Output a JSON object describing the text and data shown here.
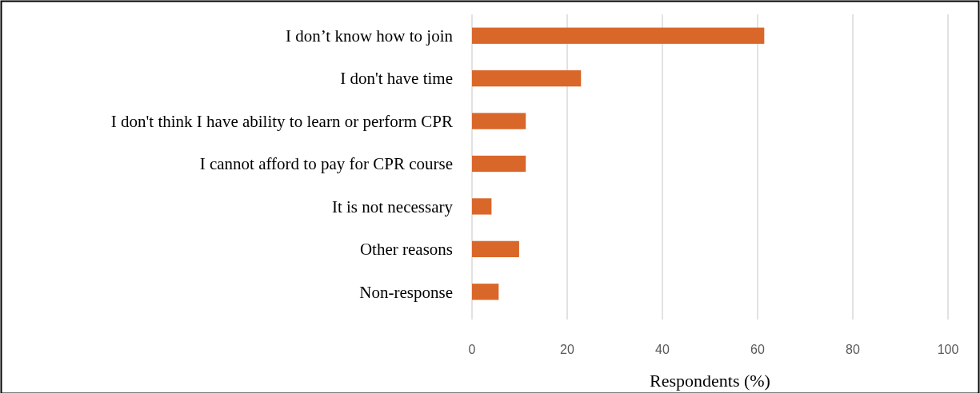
{
  "chart_data": {
    "type": "bar",
    "orientation": "horizontal",
    "xlabel": "Respondents (%)",
    "categories": [
      "I don’t know how to join",
      "I don't have time",
      "I don't think I have ability to learn or perform CPR",
      "I cannot afford to pay for CPR course",
      "It is not necessary",
      "Other reasons",
      "Non-response"
    ],
    "values": [
      61.4,
      22.9,
      11.3,
      11.3,
      4.1,
      9.9,
      5.6
    ],
    "color": "#d9672a",
    "xlim": [
      0,
      100
    ],
    "xticks": [
      0,
      20,
      40,
      60,
      80,
      100
    ],
    "grid": "x"
  }
}
